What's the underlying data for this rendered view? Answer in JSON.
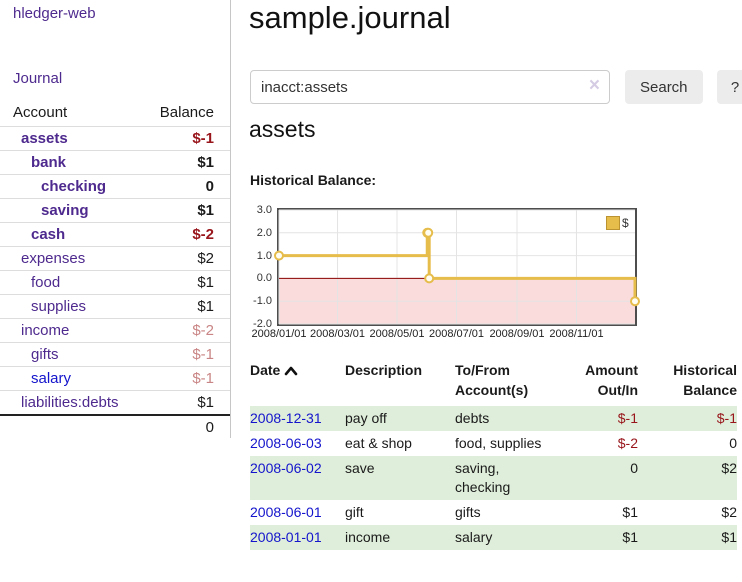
{
  "app": {
    "title": "hledger-web",
    "nav_journal": "Journal"
  },
  "sidebar": {
    "accounts_header": {
      "account": "Account",
      "balance": "Balance"
    },
    "accounts": [
      {
        "name": "assets",
        "balance": "$-1",
        "indent": 1,
        "bold": true,
        "negative": "strong"
      },
      {
        "name": "bank",
        "balance": "$1",
        "indent": 2,
        "bold": true,
        "negative": "none"
      },
      {
        "name": "checking",
        "balance": "0",
        "indent": 3,
        "bold": true,
        "negative": "none"
      },
      {
        "name": "saving",
        "balance": "$1",
        "indent": 3,
        "bold": true,
        "negative": "none"
      },
      {
        "name": "cash",
        "balance": "$-2",
        "indent": 2,
        "bold": true,
        "negative": "strong"
      },
      {
        "name": "expenses",
        "balance": "$2",
        "indent": 1,
        "bold": false,
        "negative": "none"
      },
      {
        "name": "food",
        "balance": "$1",
        "indent": 2,
        "bold": false,
        "negative": "none"
      },
      {
        "name": "supplies",
        "balance": "$1",
        "indent": 2,
        "bold": false,
        "negative": "none"
      },
      {
        "name": "income",
        "balance": "$-2",
        "indent": 1,
        "bold": false,
        "negative": "soft"
      },
      {
        "name": "gifts",
        "balance": "$-1",
        "indent": 2,
        "bold": false,
        "negative": "soft"
      },
      {
        "name": "salary",
        "balance": "$-1",
        "indent": 2,
        "bold": false,
        "negative": "soft",
        "link_style": "blue"
      },
      {
        "name": "liabilities:debts",
        "balance": "$1",
        "indent": 1,
        "bold": false,
        "negative": "none"
      }
    ],
    "total": "0"
  },
  "header": {
    "title": "sample.journal"
  },
  "search": {
    "value": "inacct:assets",
    "clear_icon": "×",
    "button": "Search",
    "help_button": "?"
  },
  "account_page": {
    "title": "assets",
    "chart_label": "Historical Balance:"
  },
  "chart_data": {
    "type": "line",
    "step": true,
    "title": "Historical Balance:",
    "x_range": [
      "2008-01-01",
      "2008-12-31"
    ],
    "y_range": [
      -2,
      3
    ],
    "y_ticks": [
      3,
      2,
      1,
      0,
      -1,
      -2
    ],
    "y_tick_labels": [
      "3.0",
      "2.0",
      "1.0",
      "0.0",
      "-1.0",
      "-2.0"
    ],
    "x_ticks": [
      {
        "date": "2008-01-01",
        "label": "2008/01/01"
      },
      {
        "date": "2008-03-01",
        "label": "2008/03/01"
      },
      {
        "date": "2008-05-01",
        "label": "2008/05/01"
      },
      {
        "date": "2008-07-01",
        "label": "2008/07/01"
      },
      {
        "date": "2008-09-01",
        "label": "2008/09/01"
      },
      {
        "date": "2008-11-01",
        "label": "2008/11/01"
      }
    ],
    "series": [
      {
        "name": "$",
        "points": [
          [
            "2008-01-01",
            1
          ],
          [
            "2008-06-01",
            2
          ],
          [
            "2008-06-02",
            2
          ],
          [
            "2008-06-03",
            0
          ],
          [
            "2008-12-31",
            -1
          ]
        ]
      }
    ],
    "legend": {
      "position": "top-right",
      "entries": [
        "$"
      ]
    },
    "colors": {
      "series": "#e6bc4a",
      "marker_fill": "#fffdf2",
      "negative_region": "#fadcdc",
      "zero_line": "#8b0000",
      "grid": "#e4e4e4",
      "border": "#4d4d4d"
    }
  },
  "register": {
    "columns": {
      "date": "Date",
      "description": "Description",
      "accounts": "To/From Account(s)",
      "amount": "Amount Out/In",
      "balance": "Historical Balance"
    },
    "rows": [
      {
        "date": "2008-12-31",
        "description": "pay off",
        "accounts": "debts",
        "amount": "$-1",
        "balance": "$-1",
        "amount_negative": true,
        "balance_negative": true,
        "shaded": true
      },
      {
        "date": "2008-06-03",
        "description": "eat & shop",
        "accounts": "food, supplies",
        "amount": "$-2",
        "balance": "0",
        "amount_negative": true,
        "balance_negative": false,
        "shaded": false
      },
      {
        "date": "2008-06-02",
        "description": "save",
        "accounts": "saving, checking",
        "amount": "0",
        "balance": "$2",
        "amount_negative": false,
        "balance_negative": false,
        "shaded": true
      },
      {
        "date": "2008-06-01",
        "description": "gift",
        "accounts": "gifts",
        "amount": "$1",
        "balance": "$2",
        "amount_negative": false,
        "balance_negative": false,
        "shaded": false
      },
      {
        "date": "2008-01-01",
        "description": "income",
        "accounts": "salary",
        "amount": "$1",
        "balance": "$1",
        "amount_negative": false,
        "balance_negative": false,
        "shaded": true
      }
    ]
  }
}
